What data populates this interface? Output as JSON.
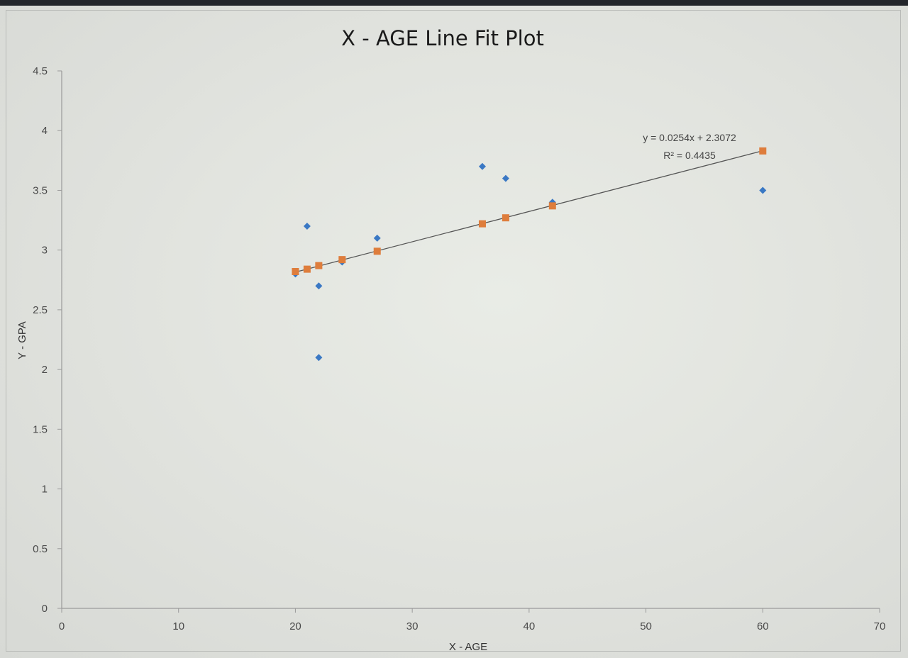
{
  "chart_data": {
    "type": "scatter",
    "title": "X - AGE Line Fit  Plot",
    "xlabel": "X - AGE",
    "ylabel": "Y - GPA",
    "xlim": [
      0,
      70
    ],
    "ylim": [
      0,
      4.5
    ],
    "x_ticks": [
      "0",
      "10",
      "20",
      "30",
      "40",
      "50",
      "60",
      "70"
    ],
    "y_ticks": [
      "0",
      "0.5",
      "1",
      "1.5",
      "2",
      "2.5",
      "3",
      "3.5",
      "4",
      "4.5"
    ],
    "grid": false,
    "series": [
      {
        "marker": "diamond",
        "color": "#3a78c4",
        "points": [
          {
            "x": 20,
            "y": 2.8
          },
          {
            "x": 21,
            "y": 3.2
          },
          {
            "x": 22,
            "y": 2.7
          },
          {
            "x": 22,
            "y": 2.1
          },
          {
            "x": 24,
            "y": 2.9
          },
          {
            "x": 27,
            "y": 3.1
          },
          {
            "x": 36,
            "y": 3.7
          },
          {
            "x": 38,
            "y": 3.6
          },
          {
            "x": 42,
            "y": 3.4
          },
          {
            "x": 60,
            "y": 3.5
          }
        ]
      },
      {
        "marker": "square",
        "color": "#de7d3c",
        "points": [
          {
            "x": 20,
            "y": 2.82
          },
          {
            "x": 21,
            "y": 2.84
          },
          {
            "x": 22,
            "y": 2.87
          },
          {
            "x": 24,
            "y": 2.92
          },
          {
            "x": 27,
            "y": 2.99
          },
          {
            "x": 36,
            "y": 3.22
          },
          {
            "x": 38,
            "y": 3.27
          },
          {
            "x": 42,
            "y": 3.37
          },
          {
            "x": 60,
            "y": 3.83
          }
        ]
      }
    ],
    "trendline": {
      "slope": 0.0254,
      "intercept": 2.3072,
      "x_range": [
        20,
        60
      ],
      "color": "#555555",
      "equation": "y = 0.0254x + 2.3072",
      "r_squared": "R² = 0.4435"
    }
  }
}
